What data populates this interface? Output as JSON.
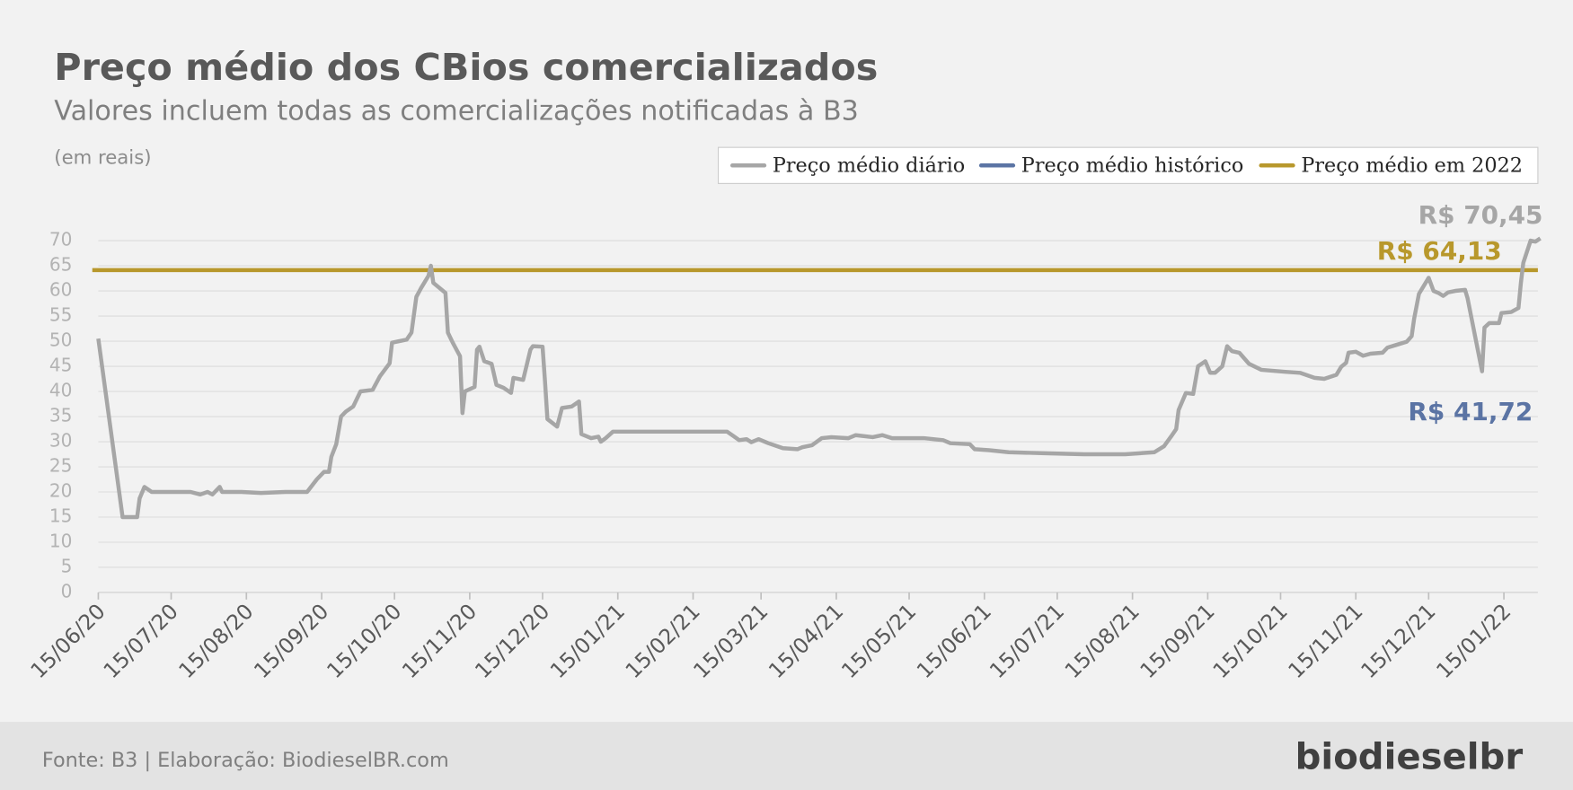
{
  "chart_data": {
    "type": "line",
    "title": "Preço médio dos CBios comercializados",
    "subtitle": "Valores incluem todas as comercializações notificadas à B3",
    "y_label": "(em reais)",
    "source": "Fonte: B3 | Elaboração: BiodieselBR.com",
    "logo": "biodieselbr",
    "grid": true,
    "legend": "top-right",
    "x": [
      "2020-06-15",
      "2020-06-25",
      "2020-07-01",
      "2020-07-02",
      "2020-07-04",
      "2020-07-07",
      "2020-07-23",
      "2020-07-27",
      "2020-07-30",
      "2020-08-01",
      "2020-08-04",
      "2020-08-05",
      "2020-08-13",
      "2020-08-21",
      "2020-08-31",
      "2020-09-09",
      "2020-09-13",
      "2020-09-16",
      "2020-09-18",
      "2020-09-19",
      "2020-09-21",
      "2020-09-23",
      "2020-09-25",
      "2020-09-28",
      "2020-10-01",
      "2020-10-06",
      "2020-10-09",
      "2020-10-13",
      "2020-10-14",
      "2020-10-20",
      "2020-10-22",
      "2020-10-24",
      "2020-10-26",
      "2020-10-29",
      "2020-10-30",
      "2020-10-31",
      "2020-11-05",
      "2020-11-06",
      "2020-11-08",
      "2020-11-11",
      "2020-11-12",
      "2020-11-13",
      "2020-11-17",
      "2020-11-18",
      "2020-11-19",
      "2020-11-21",
      "2020-11-24",
      "2020-11-26",
      "2020-11-29",
      "2020-12-02",
      "2020-12-03",
      "2020-12-07",
      "2020-12-10",
      "2020-12-11",
      "2020-12-15",
      "2020-12-16",
      "2020-12-17",
      "2020-12-21",
      "2020-12-23",
      "2020-12-27",
      "2020-12-30",
      "2020-12-31",
      "2021-01-04",
      "2021-01-07",
      "2021-01-08",
      "2021-01-10",
      "2021-01-13",
      "2021-01-21",
      "2021-02-02",
      "2021-02-19",
      "2021-03-01",
      "2021-03-04",
      "2021-03-06",
      "2021-03-09",
      "2021-03-11",
      "2021-03-14",
      "2021-03-18",
      "2021-03-24",
      "2021-03-30",
      "2021-04-01",
      "2021-04-05",
      "2021-04-09",
      "2021-04-13",
      "2021-04-20",
      "2021-04-23",
      "2021-04-30",
      "2021-05-04",
      "2021-05-08",
      "2021-05-21",
      "2021-05-29",
      "2021-06-01",
      "2021-06-09",
      "2021-06-11",
      "2021-06-17",
      "2021-06-25",
      "2021-07-10",
      "2021-07-26",
      "2021-08-12",
      "2021-08-24",
      "2021-08-28",
      "2021-08-31",
      "2021-09-02",
      "2021-09-03",
      "2021-09-06",
      "2021-09-09",
      "2021-09-11",
      "2021-09-14",
      "2021-09-16",
      "2021-09-18",
      "2021-09-21",
      "2021-09-23",
      "2021-09-25",
      "2021-09-28",
      "2021-10-02",
      "2021-10-07",
      "2021-10-17",
      "2021-10-23",
      "2021-10-29",
      "2021-11-02",
      "2021-11-07",
      "2021-11-09",
      "2021-11-11",
      "2021-11-12",
      "2021-11-15",
      "2021-11-18",
      "2021-11-21",
      "2021-11-26",
      "2021-11-28",
      "2021-12-02",
      "2021-12-06",
      "2021-12-08",
      "2021-12-09",
      "2021-12-11",
      "2021-12-15",
      "2021-12-17",
      "2021-12-19",
      "2021-12-21",
      "2021-12-23",
      "2021-12-26",
      "2021-12-30",
      "2021-12-31",
      "2022-01-06",
      "2022-01-07",
      "2022-01-09",
      "2022-01-13",
      "2022-01-14",
      "2022-01-18",
      "2022-01-21",
      "2022-01-22",
      "2022-01-23",
      "2022-01-26",
      "2022-01-28",
      "2022-01-30"
    ],
    "series": [
      {
        "name": "Preço médio diário",
        "color": "#a6a6a6",
        "last_label": "R$ 70,45",
        "values": [
          50.5,
          15,
          15,
          18.7,
          21,
          20,
          20,
          19.5,
          20,
          19.5,
          21,
          20,
          20,
          19.8,
          20,
          20,
          22.5,
          24,
          24,
          27,
          29.5,
          35,
          36,
          37,
          40,
          40.3,
          43,
          45.6,
          49.7,
          50.3,
          51.7,
          58.8,
          60.6,
          63,
          65,
          61.6,
          59.6,
          51.7,
          49.7,
          47,
          35.7,
          40,
          40.9,
          48.3,
          48.9,
          46,
          45.5,
          41.3,
          40.7,
          39.7,
          42.7,
          42.3,
          48.3,
          49,
          48.9,
          42,
          34.5,
          33,
          36.7,
          37,
          38,
          31.5,
          30.7,
          31,
          30,
          30.7,
          32,
          32,
          32,
          32,
          32,
          31,
          30.3,
          30.5,
          29.9,
          30.5,
          29.7,
          28.7,
          28.5,
          28.9,
          29.3,
          30.7,
          30.9,
          30.7,
          31.3,
          30.9,
          31.3,
          30.7,
          30.7,
          30.3,
          29.7,
          29.5,
          28.5,
          28.3,
          27.9,
          27.7,
          27.5,
          27.5,
          27.9,
          29.1,
          31.1,
          32.5,
          36.3,
          39.7,
          39.5,
          45,
          46,
          43.7,
          43.7,
          45,
          49,
          48,
          47.7,
          45.5,
          44.3,
          43.9,
          43.7,
          42.7,
          42.5,
          43.3,
          44.9,
          45.7,
          47.7,
          47.9,
          47.1,
          47.5,
          47.7,
          48.7,
          49.3,
          49.9,
          51,
          54.4,
          59.4,
          62.6,
          60,
          59.6,
          59,
          59.7,
          60,
          60.2,
          58.6,
          44,
          52.7,
          53.6,
          53.6,
          55.6,
          55.8,
          56.6,
          61.6,
          65.6,
          70,
          69.8,
          70.45
        ]
      }
    ],
    "reference_lines": [
      {
        "name": "Preço médio histórico",
        "color": "#5b74a4",
        "value": 41.72,
        "label": "R$ 41,72",
        "line": false
      },
      {
        "name": "Preço médio em 2022",
        "color": "#b8982c",
        "value": 64.13,
        "label": "R$ 64,13",
        "line": true
      }
    ],
    "xlim": [
      "2020-06-15",
      "2022-01-29"
    ],
    "xticks": [
      {
        "value": "2020-06-15",
        "label": "15/06/20"
      },
      {
        "value": "2020-07-15",
        "label": "15/07/20"
      },
      {
        "value": "2020-08-15",
        "label": "15/08/20"
      },
      {
        "value": "2020-09-15",
        "label": "15/09/20"
      },
      {
        "value": "2020-10-15",
        "label": "15/10/20"
      },
      {
        "value": "2020-11-15",
        "label": "15/11/20"
      },
      {
        "value": "2020-12-15",
        "label": "15/12/20"
      },
      {
        "value": "2021-01-15",
        "label": "15/01/21"
      },
      {
        "value": "2021-02-15",
        "label": "15/02/21"
      },
      {
        "value": "2021-03-15",
        "label": "15/03/21"
      },
      {
        "value": "2021-04-15",
        "label": "15/04/21"
      },
      {
        "value": "2021-05-15",
        "label": "15/05/21"
      },
      {
        "value": "2021-06-15",
        "label": "15/06/21"
      },
      {
        "value": "2021-07-15",
        "label": "15/07/21"
      },
      {
        "value": "2021-08-15",
        "label": "15/08/21"
      },
      {
        "value": "2021-09-15",
        "label": "15/09/21"
      },
      {
        "value": "2021-10-15",
        "label": "15/10/21"
      },
      {
        "value": "2021-11-15",
        "label": "15/11/21"
      },
      {
        "value": "2021-12-15",
        "label": "15/12/21"
      },
      {
        "value": "2022-01-15",
        "label": "15/01/22"
      }
    ],
    "ylim": [
      0,
      70
    ],
    "yticks": [
      0,
      5,
      10,
      15,
      20,
      25,
      30,
      35,
      40,
      45,
      50,
      55,
      60,
      65,
      70
    ]
  }
}
